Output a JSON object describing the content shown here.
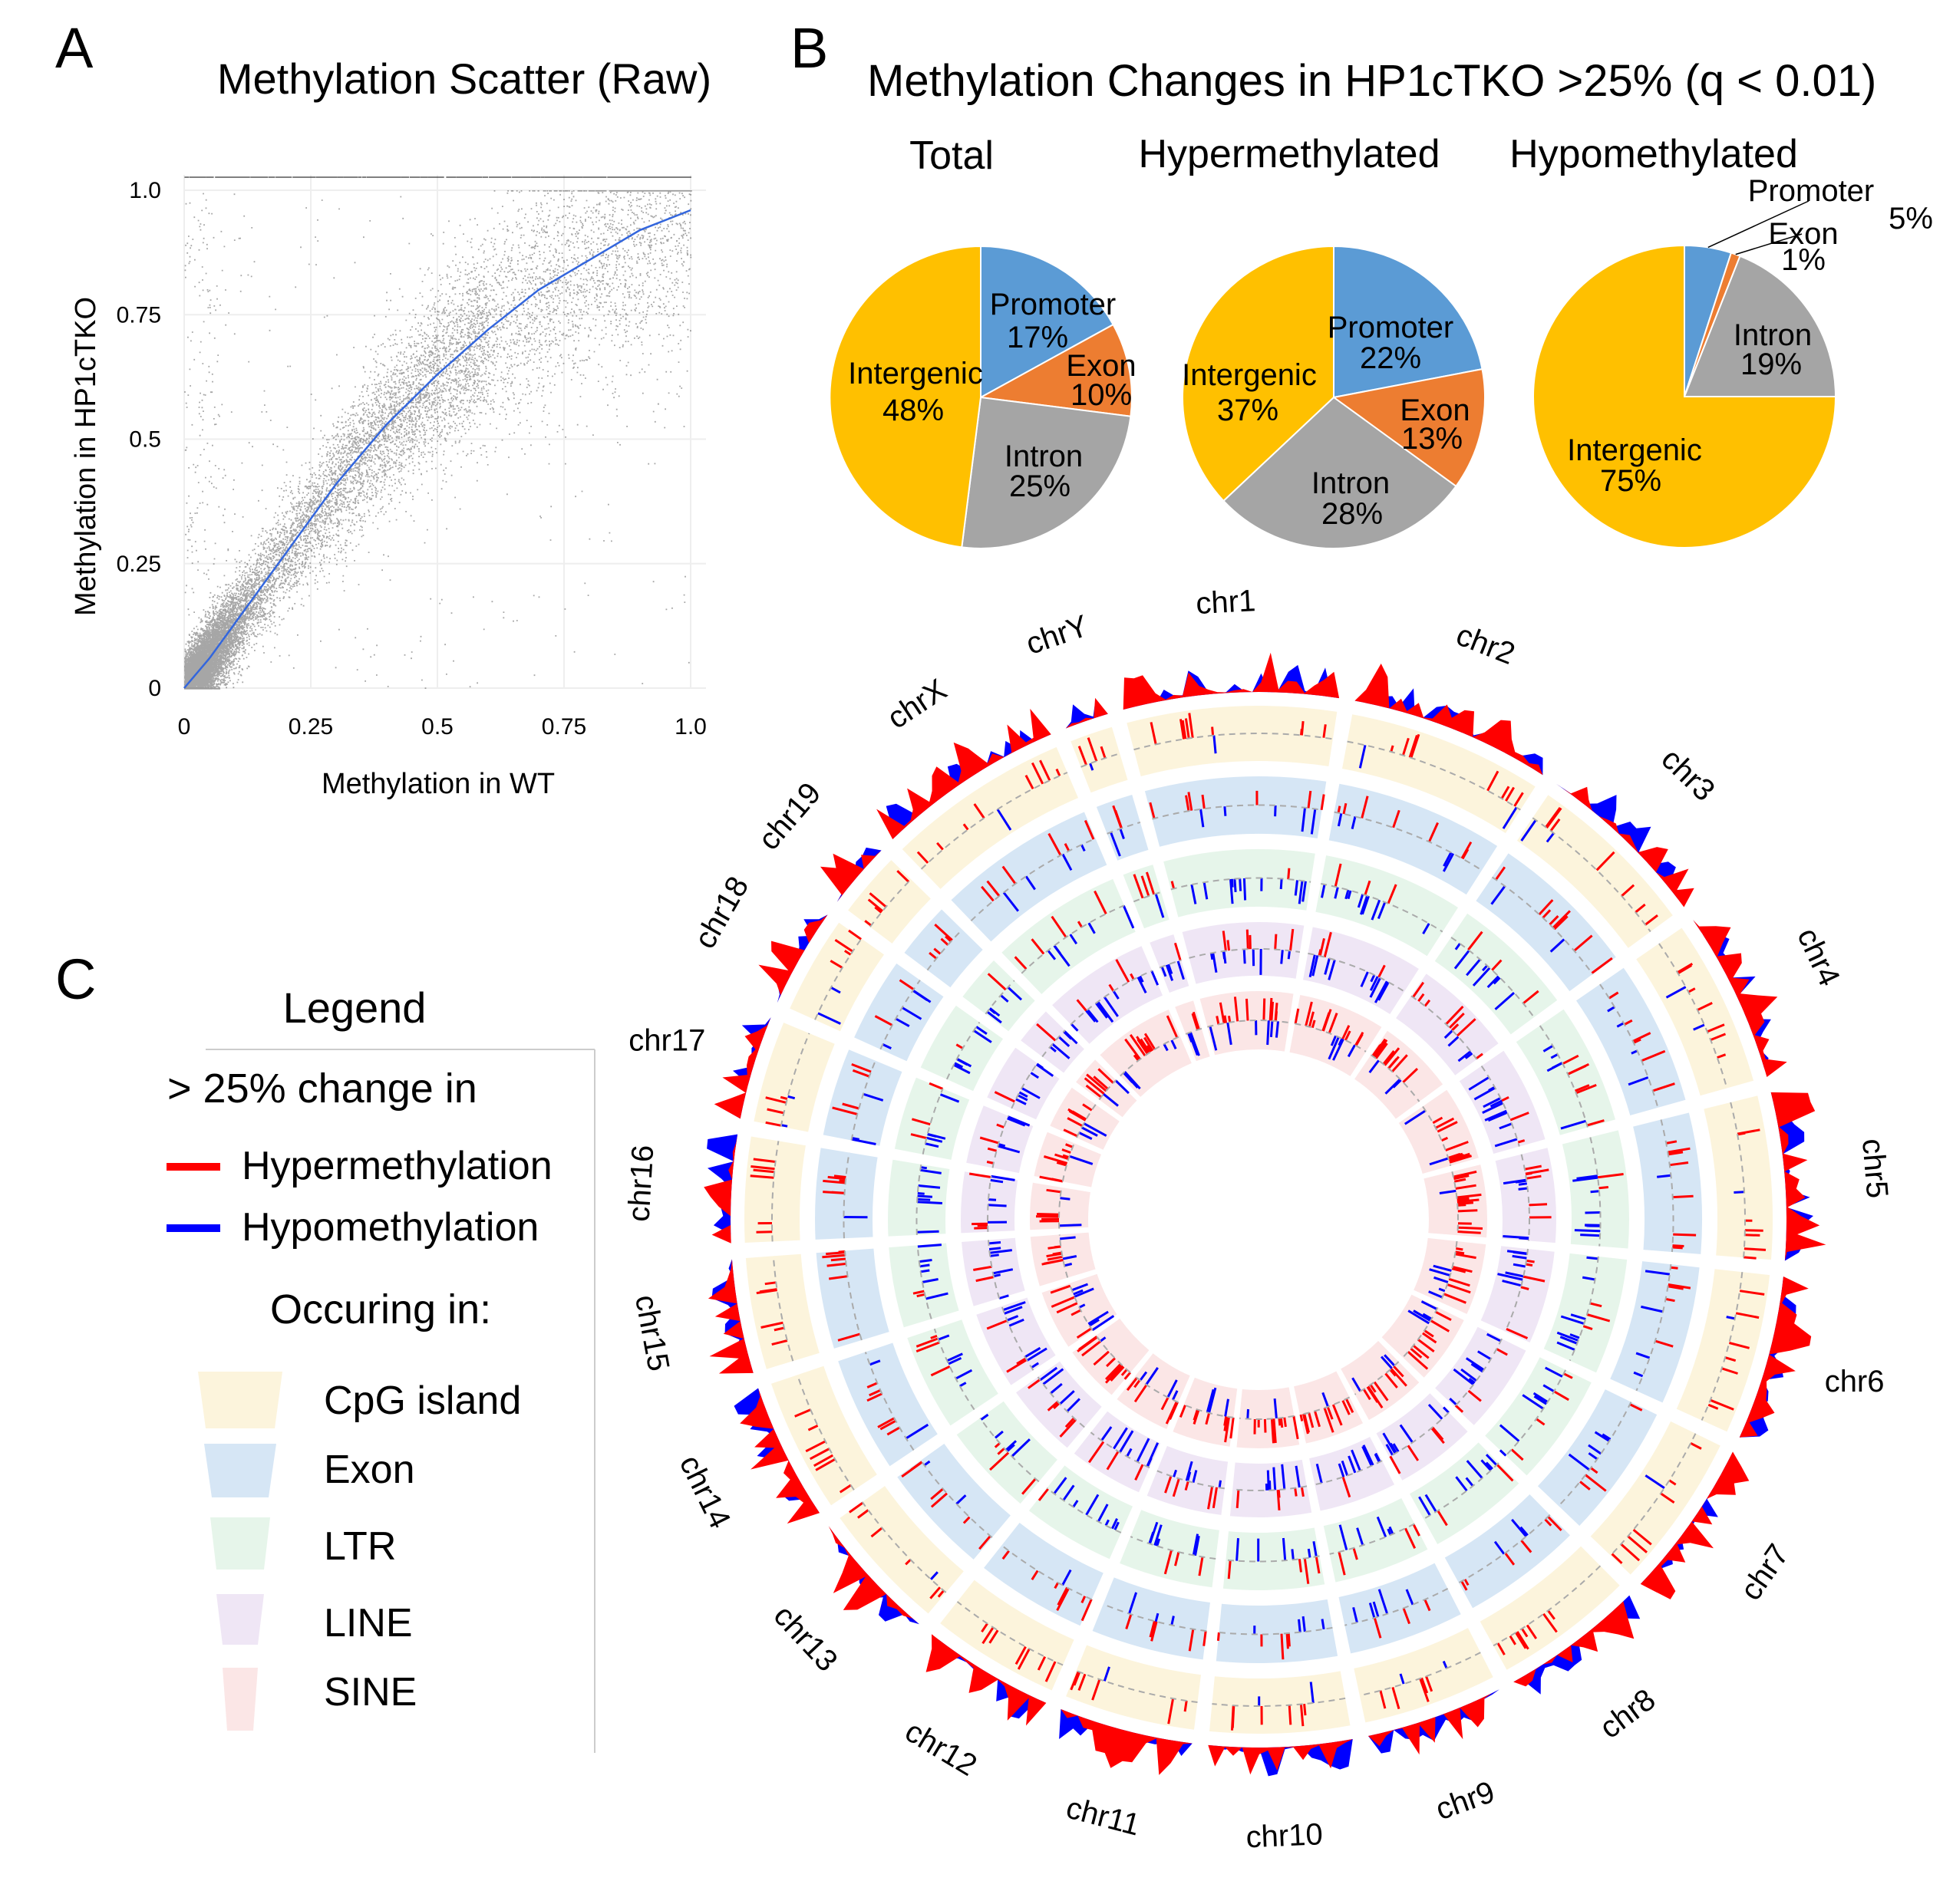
{
  "panels": {
    "a": {
      "letter": "A"
    },
    "b": {
      "letter": "B",
      "title": "Methylation Changes in HP1cTKO >25% (q < 0.01)"
    },
    "c": {
      "letter": "C"
    }
  },
  "chart_data": [
    {
      "id": "scatter",
      "type": "scatter",
      "title": "Methylation Scatter (Raw)",
      "xlabel": "Methylation in WT",
      "ylabel": "Methylation in HP1cTKO",
      "xlim": [
        0,
        1.0
      ],
      "ylim": [
        0,
        1.0
      ],
      "xticks": [
        "0",
        "0.25",
        "0.5",
        "0.75",
        "1.0"
      ],
      "yticks": [
        "0",
        "0.25",
        "0.5",
        "0.75",
        "1.0"
      ],
      "point_color": "#000000",
      "fit_color": "#3366dd",
      "fit_curve": {
        "x": [
          0,
          0.05,
          0.1,
          0.15,
          0.2,
          0.25,
          0.3,
          0.4,
          0.5,
          0.6,
          0.7,
          0.8,
          0.9,
          1.0
        ],
        "y": [
          0,
          0.06,
          0.13,
          0.2,
          0.27,
          0.34,
          0.41,
          0.53,
          0.63,
          0.72,
          0.8,
          0.86,
          0.92,
          0.96
        ]
      },
      "grid": true
    },
    {
      "id": "pie-total",
      "type": "pie",
      "title": "Total",
      "slices": [
        {
          "label": "Promoter",
          "value": 17,
          "text": "17%",
          "color": "#5b9bd5"
        },
        {
          "label": "Exon",
          "value": 10,
          "text": "10%",
          "color": "#ed7d31"
        },
        {
          "label": "Intron",
          "value": 25,
          "text": "25%",
          "color": "#a5a5a5"
        },
        {
          "label": "Intergenic",
          "value": 48,
          "text": "48%",
          "color": "#ffc000"
        }
      ]
    },
    {
      "id": "pie-hyper",
      "type": "pie",
      "title": "Hypermethylated",
      "slices": [
        {
          "label": "Promoter",
          "value": 22,
          "text": "22%",
          "color": "#5b9bd5"
        },
        {
          "label": "Exon",
          "value": 13,
          "text": "13%",
          "color": "#ed7d31"
        },
        {
          "label": "Intron",
          "value": 28,
          "text": "28%",
          "color": "#a5a5a5"
        },
        {
          "label": "Intergenic",
          "value": 37,
          "text": "37%",
          "color": "#ffc000"
        }
      ]
    },
    {
      "id": "pie-hypo",
      "type": "pie",
      "title": "Hypomethylated",
      "slices": [
        {
          "label": "Promoter",
          "value": 5,
          "text": "5%",
          "color": "#5b9bd5"
        },
        {
          "label": "Exon",
          "value": 1,
          "text": "1%",
          "color": "#ed7d31"
        },
        {
          "label": "Intron",
          "value": 19,
          "text": "19%",
          "color": "#a5a5a5"
        },
        {
          "label": "Intergenic",
          "value": 75,
          "text": "75%",
          "color": "#ffc000"
        }
      ]
    },
    {
      "id": "circos",
      "type": "circos",
      "chromosomes": [
        "chr1",
        "chr2",
        "chr3",
        "chr4",
        "chr5",
        "chr6",
        "chr7",
        "chr8",
        "chr9",
        "chr10",
        "chr11",
        "chr12",
        "chr13",
        "chr14",
        "chr15",
        "chr16",
        "chr17",
        "chr18",
        "chr19",
        "chrX",
        "chrY"
      ],
      "tracks": [
        {
          "name": "CpG island",
          "color": "#fcf4dc"
        },
        {
          "name": "Exon",
          "color": "#d6e6f5"
        },
        {
          "name": "LTR",
          "color": "#e6f5ea"
        },
        {
          "name": "LINE",
          "color": "#efe6f5"
        },
        {
          "name": "SINE",
          "color": "#fbe6e6"
        }
      ],
      "hyper_color": "#ff0000",
      "hypo_color": "#0000ff"
    }
  ],
  "legend": {
    "title": "Legend",
    "subtitle": "> 25% change in",
    "hyper_label": "Hypermethylation",
    "hypo_label": "Hypomethylation",
    "occurring_label": "Occuring in:",
    "tracks": [
      "CpG island",
      "Exon",
      "LTR",
      "LINE",
      "SINE"
    ]
  }
}
